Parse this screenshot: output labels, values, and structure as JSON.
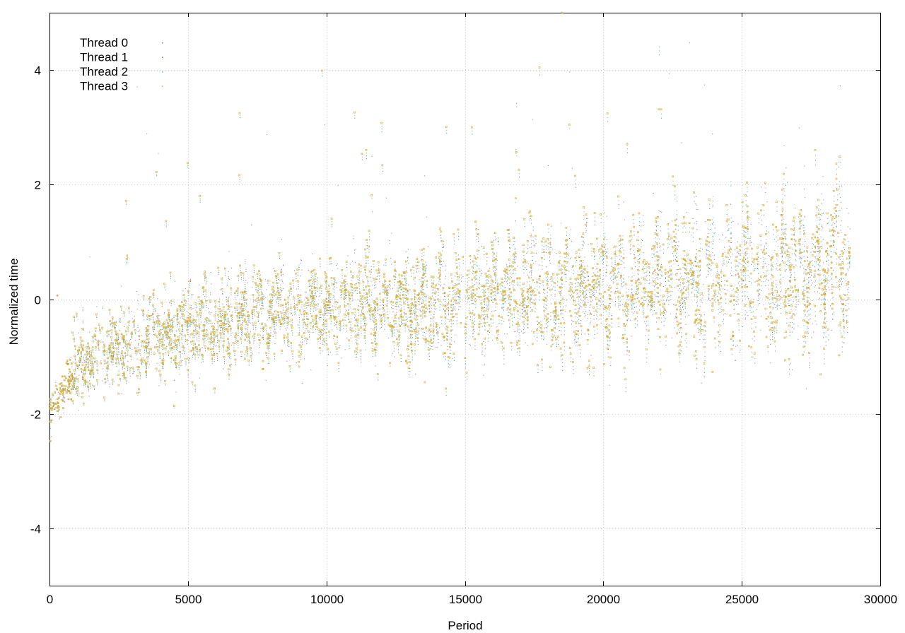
{
  "chart_data": {
    "type": "scatter",
    "title": "",
    "xlabel": "Period",
    "ylabel": "Normalized time",
    "xlim": [
      0,
      30000
    ],
    "ylim": [
      -5,
      5
    ],
    "x_ticks": [
      0,
      5000,
      10000,
      15000,
      20000,
      25000,
      30000
    ],
    "x_tick_labels": [
      "0",
      "5000",
      "10000",
      "15000",
      "20000",
      "25000",
      "30000"
    ],
    "y_ticks": [
      -4,
      -2,
      0,
      2,
      4
    ],
    "y_tick_labels": [
      "-4",
      "-2",
      "0",
      "2",
      "4"
    ],
    "grid": true,
    "legend_position": "top-left",
    "series": [
      {
        "name": "Thread 0",
        "color": "#9467bd",
        "marker": "dot"
      },
      {
        "name": "Thread 1",
        "color": "#2ca02c",
        "marker": "dot"
      },
      {
        "name": "Thread 2",
        "color": "#56b4e9",
        "marker": "dot"
      },
      {
        "name": "Thread 3",
        "color": "#d4a520",
        "marker": "square"
      }
    ],
    "point_distribution": {
      "x_range": [
        0,
        28900
      ],
      "trend_x": [
        0,
        500,
        1000,
        2000,
        3000,
        5000,
        8000,
        10000,
        12000,
        15000,
        17000,
        20000,
        22000,
        25000,
        27000,
        28900
      ],
      "trend_y": [
        -2.0,
        -1.6,
        -1.2,
        -0.9,
        -0.75,
        -0.5,
        -0.3,
        -0.2,
        -0.15,
        -0.05,
        0.1,
        0.2,
        0.3,
        0.4,
        0.45,
        0.6
      ],
      "cycle_period": 650,
      "spread": 0.7
    }
  }
}
